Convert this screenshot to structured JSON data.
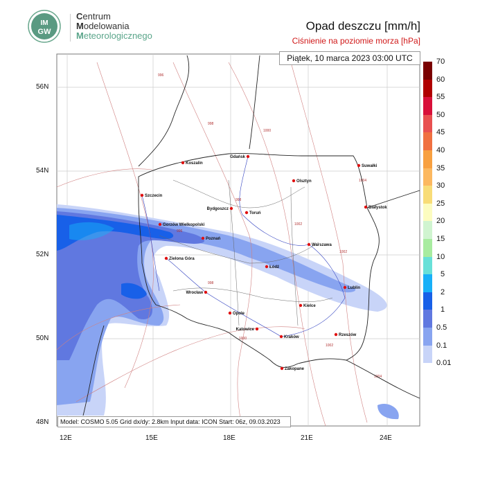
{
  "header": {
    "org_line1_initial": "C",
    "org_line1_rest": "entrum",
    "org_line2_initial": "M",
    "org_line2_rest": "odelowania",
    "org_line3_initial": "M",
    "org_line3_rest": "eteorologicznego",
    "logo_text": "IMGW",
    "title": "Opad deszczu [mm/h]",
    "subtitle": "Ciśnienie na poziomie morza [hPa]"
  },
  "map": {
    "valid_time": "Piątek, 10 marca 2023 03:00 UTC",
    "model_info": "Model: COSMO 5.05  Grid dx/dy: 2.8km  Input data: ICON  Start: 06z, 09.03.2023",
    "lon_ticks": [
      "12E",
      "15E",
      "18E",
      "21E",
      "24E"
    ],
    "lat_ticks": [
      "56N",
      "54N",
      "52N",
      "50N",
      "48N"
    ],
    "cities": [
      "Gdańsk",
      "Koszalin",
      "Suwałki",
      "Olsztyn",
      "Szczecin",
      "Bydgoszcz",
      "Toruń",
      "Białystok",
      "Gorzów Wielkopolski",
      "Poznań",
      "Warszawa",
      "Zielona Góra",
      "Łódź",
      "Lublin",
      "Wrocław",
      "Kielce",
      "Opole",
      "Katowice",
      "Rzeszów",
      "Kraków",
      "Zakopane"
    ],
    "isobar_labels": [
      "996",
      "998",
      "998",
      "1000",
      "1002",
      "1002",
      "1004",
      "996",
      "998",
      "1000",
      "1002",
      "1004"
    ],
    "colors": {
      "city": "#e01010",
      "isobar": "#d08080",
      "border": "#222222",
      "river": "#3040c0"
    }
  },
  "legend": {
    "labels": [
      "70",
      "60",
      "55",
      "50",
      "45",
      "40",
      "35",
      "30",
      "25",
      "20",
      "15",
      "10",
      "5",
      "2",
      "1",
      "0.5",
      "0.1",
      "0.01"
    ],
    "colors": [
      "#7a0000",
      "#b00000",
      "#d8103a",
      "#e85050",
      "#f07040",
      "#f8a040",
      "#fcb860",
      "#f8dc78",
      "#fcfcc0",
      "#d0f4d0",
      "#a8eca0",
      "#68e0d8",
      "#18b0f8",
      "#1860e8",
      "#6078e0",
      "#88a4f0",
      "#c8d4f8"
    ]
  }
}
